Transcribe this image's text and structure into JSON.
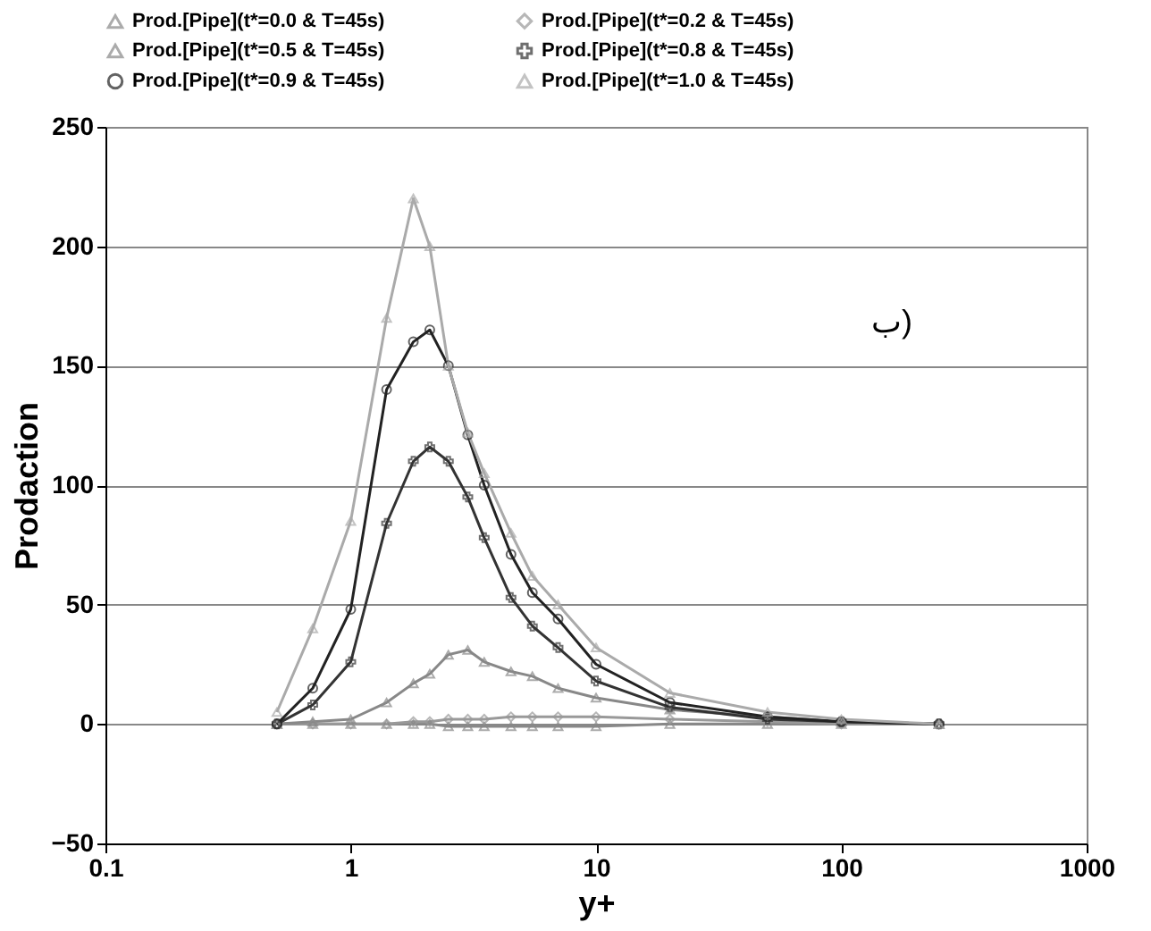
{
  "chart_data": {
    "type": "line",
    "xlabel": "y+",
    "ylabel": "Prodaction",
    "log": "x",
    "xlim": [
      0.1,
      1000
    ],
    "xticks": [
      0.1,
      1,
      10,
      100,
      1000
    ],
    "ylim": [
      -50,
      250
    ],
    "yticks": [
      -50,
      0,
      50,
      100,
      150,
      200,
      250
    ],
    "grid": "y",
    "legend": "top",
    "annotations": [
      "ب)"
    ],
    "x": [
      0.5,
      0.7,
      1,
      1.4,
      1.8,
      2.1,
      2.5,
      3,
      3.5,
      4.5,
      5.5,
      7,
      10,
      20,
      50,
      100,
      250
    ],
    "series": [
      {
        "name": "Prod.[Pipe](t*=0.0 & T=45s)",
        "color": "#888888",
        "marker": "triangle",
        "values": [
          0,
          0,
          0,
          0,
          0,
          0,
          -1,
          -1,
          -1,
          -1,
          -1,
          -1,
          -1,
          0,
          0,
          0,
          0
        ]
      },
      {
        "name": "Prod.[Pipe](t*=0.2 & T=45s)",
        "color": "#999999",
        "marker": "diamond",
        "values": [
          0,
          0,
          0,
          0,
          1,
          1,
          2,
          2,
          2,
          3,
          3,
          3,
          3,
          2,
          1,
          0,
          0
        ]
      },
      {
        "name": "Prod.[Pipe](t*=0.5 & T=45s)",
        "color": "#888888",
        "marker": "triangle",
        "values": [
          0,
          1,
          2,
          9,
          17,
          21,
          29,
          31,
          26,
          22,
          20,
          15,
          11,
          6,
          3,
          1,
          0
        ]
      },
      {
        "name": "Prod.[Pipe](t*=0.8 & T=45s)",
        "color": "#333333",
        "marker": "cross",
        "values": [
          0,
          8,
          26,
          84,
          110,
          116,
          110,
          95,
          78,
          53,
          41,
          32,
          18,
          7,
          2,
          1,
          0
        ]
      },
      {
        "name": "Prod.[Pipe](t*=0.9 & T=45s)",
        "color": "#222222",
        "marker": "circle",
        "values": [
          0,
          15,
          48,
          140,
          160,
          165,
          150,
          121,
          100,
          71,
          55,
          44,
          25,
          9,
          3,
          1,
          0
        ]
      },
      {
        "name": "Prod.[Pipe](t*=1.0 & T=45s)",
        "color": "#aaaaaa",
        "marker": "triangle",
        "values": [
          5,
          40,
          85,
          170,
          220,
          200,
          150,
          122,
          105,
          80,
          62,
          50,
          32,
          13,
          5,
          2,
          0
        ]
      }
    ]
  }
}
